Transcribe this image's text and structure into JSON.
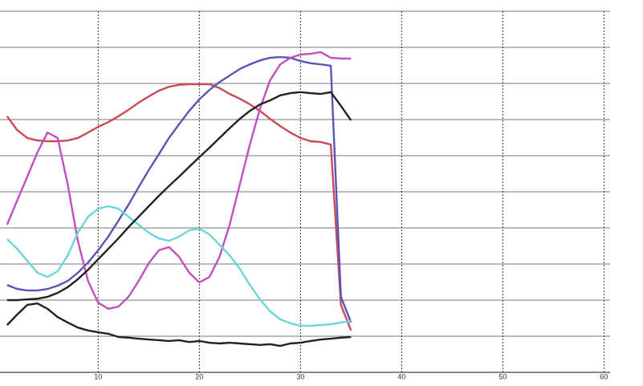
{
  "chart_data": {
    "type": "line",
    "x": [
      1,
      2,
      3,
      4,
      5,
      6,
      7,
      8,
      9,
      10,
      11,
      12,
      13,
      14,
      15,
      16,
      17,
      18,
      19,
      20,
      21,
      22,
      23,
      24,
      25,
      26,
      27,
      28,
      29,
      30,
      31,
      32,
      33,
      34,
      35
    ],
    "xlim": [
      0.3,
      60.6
    ],
    "xticks": [
      10,
      20,
      30,
      40,
      50,
      60
    ],
    "ylim": [
      0,
      10
    ],
    "yticks": [
      0,
      1,
      2,
      3,
      4,
      5,
      6,
      7,
      8,
      9,
      10
    ],
    "show_ytick_labels": false,
    "grid": true,
    "series": [
      {
        "color": "#cc4a55",
        "values": [
          7.09,
          6.71,
          6.49,
          6.42,
          6.4,
          6.4,
          6.42,
          6.49,
          6.64,
          6.8,
          6.93,
          7.09,
          7.27,
          7.47,
          7.64,
          7.8,
          7.91,
          7.96,
          7.98,
          7.98,
          7.98,
          7.87,
          7.71,
          7.58,
          7.42,
          7.24,
          7.02,
          6.82,
          6.64,
          6.49,
          6.4,
          6.38,
          6.31,
          1.87,
          1.16
        ]
      },
      {
        "color": "#5656b8",
        "values": [
          2.42,
          2.31,
          2.27,
          2.27,
          2.31,
          2.4,
          2.53,
          2.76,
          3.04,
          3.38,
          3.76,
          4.2,
          4.64,
          5.13,
          5.6,
          6.04,
          6.49,
          6.87,
          7.24,
          7.56,
          7.82,
          8.04,
          8.22,
          8.4,
          8.53,
          8.64,
          8.71,
          8.73,
          8.71,
          8.62,
          8.56,
          8.53,
          8.49,
          2.09,
          1.38
        ]
      },
      {
        "color": "#c050c0",
        "values": [
          4.09,
          4.76,
          5.42,
          6.09,
          6.64,
          6.49,
          5.2,
          3.64,
          2.53,
          1.93,
          1.76,
          1.82,
          2.09,
          2.53,
          3.02,
          3.38,
          3.47,
          3.2,
          2.76,
          2.49,
          2.64,
          3.2,
          4.09,
          5.2,
          6.31,
          7.31,
          8.09,
          8.53,
          8.71,
          8.8,
          8.82,
          8.87,
          8.71,
          8.69,
          8.69
        ]
      },
      {
        "color": "#6ad6d6",
        "values": [
          3.69,
          3.42,
          3.09,
          2.76,
          2.64,
          2.8,
          3.24,
          3.87,
          4.31,
          4.53,
          4.6,
          4.53,
          4.31,
          4.09,
          3.87,
          3.71,
          3.64,
          3.76,
          3.93,
          3.98,
          3.82,
          3.53,
          3.24,
          2.87,
          2.42,
          2.02,
          1.69,
          1.47,
          1.36,
          1.29,
          1.29,
          1.31,
          1.33,
          1.38,
          1.42
        ]
      },
      {
        "color": "#222222",
        "values": [
          2.0,
          2.0,
          2.02,
          2.04,
          2.09,
          2.2,
          2.36,
          2.58,
          2.84,
          3.13,
          3.42,
          3.71,
          4.02,
          4.31,
          4.6,
          4.89,
          5.16,
          5.42,
          5.69,
          5.96,
          6.22,
          6.49,
          6.76,
          7.02,
          7.24,
          7.42,
          7.53,
          7.67,
          7.73,
          7.76,
          7.73,
          7.71,
          7.76,
          7.38,
          6.98
        ]
      },
      {
        "color": "#222222",
        "values": [
          1.31,
          1.6,
          1.87,
          1.91,
          1.76,
          1.53,
          1.38,
          1.24,
          1.16,
          1.11,
          1.07,
          0.98,
          0.96,
          0.93,
          0.91,
          0.89,
          0.87,
          0.89,
          0.84,
          0.87,
          0.82,
          0.8,
          0.82,
          0.8,
          0.78,
          0.76,
          0.78,
          0.73,
          0.8,
          0.82,
          0.87,
          0.91,
          0.93,
          0.96,
          0.98
        ]
      }
    ]
  }
}
